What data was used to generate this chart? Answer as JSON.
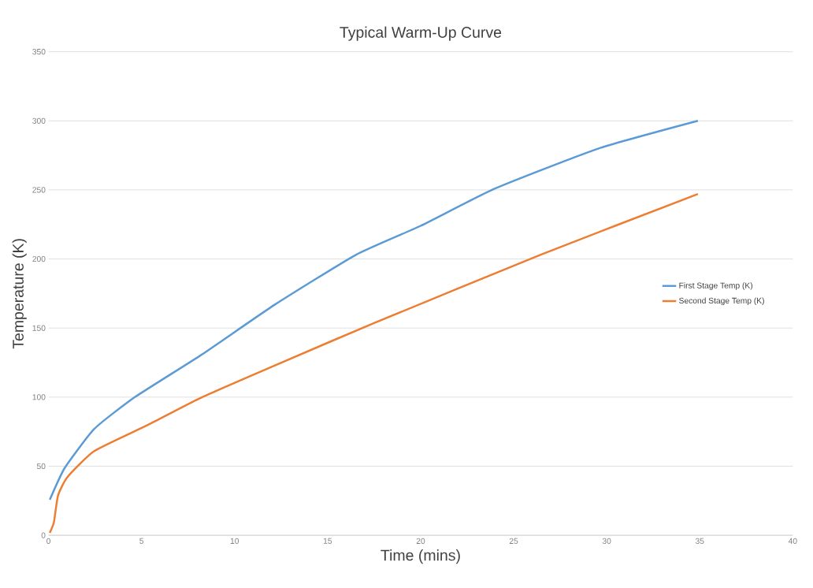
{
  "chart_data": {
    "type": "line",
    "title": "Typical Warm-Up Curve",
    "xlabel": "Time (mins)",
    "ylabel": "Temperature (K)",
    "xlim": [
      0,
      40
    ],
    "xticks": [
      0,
      5,
      10,
      15,
      20,
      25,
      30,
      35,
      40
    ],
    "ylim": [
      0,
      350
    ],
    "yticks": [
      0,
      50,
      100,
      150,
      200,
      250,
      300,
      350
    ],
    "grid": "y",
    "legend": "right",
    "marker": "none",
    "line_style": "solid",
    "series": [
      {
        "name": "First Stage Temp (K)",
        "color": "#5b9bd5",
        "x": [
          0.07,
          0.87,
          2.46,
          4.64,
          8.26,
          12.17,
          16.52,
          20.0,
          24.0,
          29.57,
          34.9
        ],
        "values": [
          25.7,
          48.7,
          77,
          100,
          131,
          167,
          203,
          224,
          251,
          280,
          300
        ]
      },
      {
        "name": "Second Stage Temp (K)",
        "color": "#ed7d31",
        "x": [
          0.07,
          0.29,
          0.51,
          1.01,
          2.46,
          5.36,
          8.26,
          12.17,
          17.57,
          26.43,
          34.9
        ],
        "values": [
          1.8,
          9.3,
          28.7,
          42,
          61,
          80,
          100,
          123,
          154,
          203,
          247
        ]
      }
    ]
  }
}
